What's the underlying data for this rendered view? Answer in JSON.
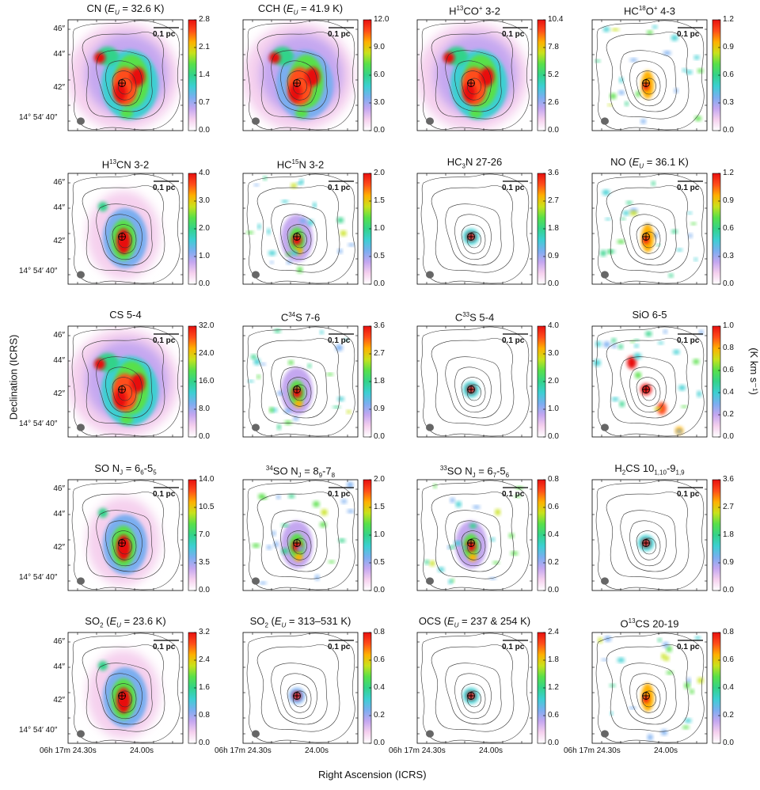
{
  "figure": {
    "ylabel": "Declination (ICRS)",
    "xlabel": "Right Ascension (ICRS)",
    "colorbar_unit": "(K km s⁻¹)",
    "scalebar": "0.1 pc",
    "ra_ticks": [
      "06h 17m 24.30s",
      "24.00s"
    ],
    "dec_ticks": [
      "46″",
      "44″",
      "42″",
      "14° 54′ 40″"
    ],
    "colormap": [
      "#ffffff",
      "#f5d0ee",
      "#c4a7f0",
      "#7aaef0",
      "#3ccfd2",
      "#33d38a",
      "#58e04a",
      "#c8e21c",
      "#ffb000",
      "#ff4d1a",
      "#e81010"
    ]
  },
  "chart_data": [
    {
      "type": "heatmap",
      "title_html": "CN (<i>E<sub>U</sub></i> = 32.6 K)",
      "title": "CN (EU = 32.6 K)",
      "cbar_ticks": [
        "0.0",
        "0.7",
        "1.4",
        "2.1",
        "2.8"
      ],
      "vmax": 2.8,
      "emission": "extended"
    },
    {
      "type": "heatmap",
      "title_html": "CCH (<i>E<sub>U</sub></i> = 41.9 K)",
      "title": "CCH (EU = 41.9 K)",
      "cbar_ticks": [
        "0.0",
        "3.0",
        "6.0",
        "9.0",
        "12.0"
      ],
      "vmax": 12.0,
      "emission": "extended"
    },
    {
      "type": "heatmap",
      "title_html": "H<sup>13</sup>CO<sup>+</sup> 3-2",
      "title": "H13CO+ 3-2",
      "cbar_ticks": [
        "0.0",
        "2.6",
        "5.2",
        "7.8",
        "10.4"
      ],
      "vmax": 10.4,
      "emission": "extended"
    },
    {
      "type": "heatmap",
      "title_html": "HC<sup>18</sup>O<sup>+</sup> 4-3",
      "title": "HC18O+ 4-3",
      "cbar_ticks": [
        "0.0",
        "0.3",
        "0.6",
        "0.9",
        "1.2"
      ],
      "vmax": 1.2,
      "emission": "patchy"
    },
    {
      "type": "heatmap",
      "title_html": "H<sup>13</sup>CN 3-2",
      "title": "H13CN 3-2",
      "cbar_ticks": [
        "0.0",
        "1.0",
        "2.0",
        "3.0",
        "4.0"
      ],
      "vmax": 4.0,
      "emission": "medium"
    },
    {
      "type": "heatmap",
      "title_html": "HC<sup>15</sup>N 3-2",
      "title": "HC15N 3-2",
      "cbar_ticks": [
        "0.0",
        "0.5",
        "1.0",
        "1.5",
        "2.0"
      ],
      "vmax": 2.0,
      "emission": "compact"
    },
    {
      "type": "heatmap",
      "title_html": "HC<sub>3</sub>N 27-26",
      "title": "HC3N 27-26",
      "cbar_ticks": [
        "0.0",
        "0.9",
        "1.8",
        "2.7",
        "3.6"
      ],
      "vmax": 3.6,
      "emission": "point"
    },
    {
      "type": "heatmap",
      "title_html": "NO (<i>E<sub>U</sub></i> = 36.1 K)",
      "title": "NO (EU = 36.1 K)",
      "cbar_ticks": [
        "0.0",
        "0.3",
        "0.6",
        "0.9",
        "1.2"
      ],
      "vmax": 1.2,
      "emission": "patchy"
    },
    {
      "type": "heatmap",
      "title_html": "CS 5-4",
      "title": "CS 5-4",
      "cbar_ticks": [
        "0.0",
        "8.0",
        "16.0",
        "24.0",
        "32.0"
      ],
      "vmax": 32.0,
      "emission": "extended"
    },
    {
      "type": "heatmap",
      "title_html": "C<sup>34</sup>S 7-6",
      "title": "C34S 7-6",
      "cbar_ticks": [
        "0.0",
        "0.9",
        "1.8",
        "2.7",
        "3.6"
      ],
      "vmax": 3.6,
      "emission": "compact"
    },
    {
      "type": "heatmap",
      "title_html": "C<sup>33</sup>S 5-4",
      "title": "C33S 5-4",
      "cbar_ticks": [
        "0.0",
        "1.0",
        "2.0",
        "3.0",
        "4.0"
      ],
      "vmax": 4.0,
      "emission": "point"
    },
    {
      "type": "heatmap",
      "title_html": "SiO 6-5",
      "title": "SiO 6-5",
      "cbar_ticks": [
        "0.0",
        "0.2",
        "0.4",
        "0.6",
        "0.8",
        "1.0"
      ],
      "vmax": 1.0,
      "emission": "outflow"
    },
    {
      "type": "heatmap",
      "title_html": "SO N<sub>J</sub> = 6<sub>6</sub>-5<sub>5</sub>",
      "title": "SO NJ = 66-55",
      "cbar_ticks": [
        "0.0",
        "3.5",
        "7.0",
        "10.5",
        "14.0"
      ],
      "vmax": 14.0,
      "emission": "medium"
    },
    {
      "type": "heatmap",
      "title_html": "<sup>34</sup>SO N<sub>J</sub> = 8<sub>9</sub>-7<sub>8</sub>",
      "title": "34SO NJ = 89-78",
      "cbar_ticks": [
        "0.0",
        "0.5",
        "1.0",
        "1.5",
        "2.0"
      ],
      "vmax": 2.0,
      "emission": "compact"
    },
    {
      "type": "heatmap",
      "title_html": "<sup>33</sup>SO N<sub>J</sub> = 6<sub>7</sub>-5<sub>6</sub>",
      "title": "33SO NJ = 67-56",
      "cbar_ticks": [
        "0.0",
        "0.2",
        "0.4",
        "0.6",
        "0.8"
      ],
      "vmax": 0.8,
      "emission": "compact"
    },
    {
      "type": "heatmap",
      "title_html": "H<sub>2</sub>CS 10<sub>1,10</sub>-9<sub>1,9</sub>",
      "title": "H2CS 101,10-91,9",
      "cbar_ticks": [
        "0.0",
        "0.9",
        "1.8",
        "2.7",
        "3.6"
      ],
      "vmax": 3.6,
      "emission": "point"
    },
    {
      "type": "heatmap",
      "title_html": "SO<sub>2</sub> (<i>E<sub>U</sub></i> = 23.6 K)",
      "title": "SO2 (EU = 23.6 K)",
      "cbar_ticks": [
        "0.0",
        "0.8",
        "1.6",
        "2.4",
        "3.2"
      ],
      "vmax": 3.2,
      "emission": "medium"
    },
    {
      "type": "heatmap",
      "title_html": "SO<sub>2</sub> (<i>E<sub>U</sub></i> = 313–531 K)",
      "title": "SO2 (EU = 313–531 K)",
      "cbar_ticks": [
        "0.0",
        "0.2",
        "0.4",
        "0.6",
        "0.8"
      ],
      "vmax": 0.8,
      "emission": "point"
    },
    {
      "type": "heatmap",
      "title_html": "OCS (<i>E<sub>U</sub></i> = 237 &amp; 254 K)",
      "title": "OCS (EU = 237 & 254 K)",
      "cbar_ticks": [
        "0.0",
        "0.6",
        "1.2",
        "1.8",
        "2.4"
      ],
      "vmax": 2.4,
      "emission": "point"
    },
    {
      "type": "heatmap",
      "title_html": "O<sup>13</sup>CS 20-19",
      "title": "O13CS 20-19",
      "cbar_ticks": [
        "0.0",
        "0.2",
        "0.4",
        "0.6",
        "0.8"
      ],
      "vmax": 0.8,
      "emission": "patchy"
    }
  ]
}
